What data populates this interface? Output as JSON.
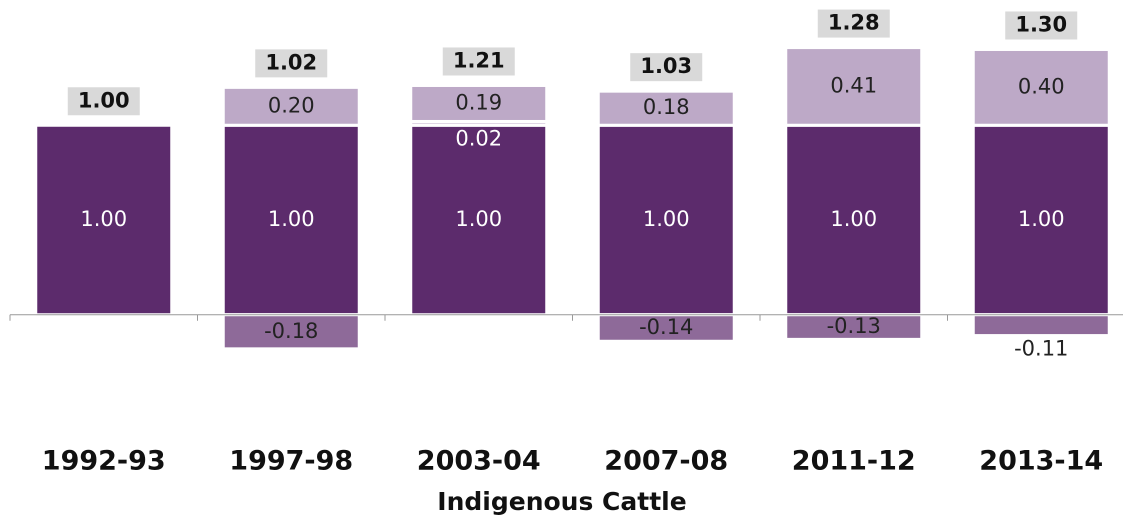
{
  "chart_data": {
    "type": "stacked_bar",
    "xlabel": "Indigenous Cattle",
    "categories": [
      "1992-93",
      "1997-98",
      "2003-04",
      "2007-08",
      "2011-12",
      "2013-14"
    ],
    "series": [
      {
        "color": "#5c2b6c",
        "values": [
          1,
          1,
          1,
          1,
          1,
          1
        ],
        "value_labels": [
          "1.00",
          "1.00",
          "1.00",
          "1.00",
          "1.00",
          "1.00"
        ],
        "label_color": "#ffffff"
      },
      {
        "color": "#d6c9dd",
        "values": [
          null,
          null,
          0.02,
          null,
          null,
          null
        ],
        "value_labels": [
          null,
          null,
          "0.02",
          null,
          null,
          null
        ],
        "label_color": "#ffffff"
      },
      {
        "color": "#bda9c7",
        "values": [
          null,
          0.2,
          0.19,
          0.18,
          0.41,
          0.4
        ],
        "value_labels": [
          null,
          "0.20",
          "0.19",
          "0.18",
          "0.41",
          "0.40"
        ],
        "label_color": "#222222"
      },
      {
        "color": "#8e6a99",
        "values": [
          null,
          -0.18,
          null,
          -0.14,
          -0.13,
          -0.11
        ],
        "value_labels": [
          null,
          "-0.18",
          null,
          "-0.14",
          "-0.13",
          "-0.11"
        ],
        "label_color": "#222222"
      }
    ],
    "totals": {
      "color": "#d9d9d9",
      "values": [
        1,
        1.02,
        1.21,
        1.03,
        1.28,
        1.3
      ],
      "value_labels": [
        "1.00",
        "1.02",
        "1.21",
        "1.03",
        "1.28",
        "1.30"
      ]
    },
    "ylim": [
      -0.45,
      1.45
    ]
  }
}
